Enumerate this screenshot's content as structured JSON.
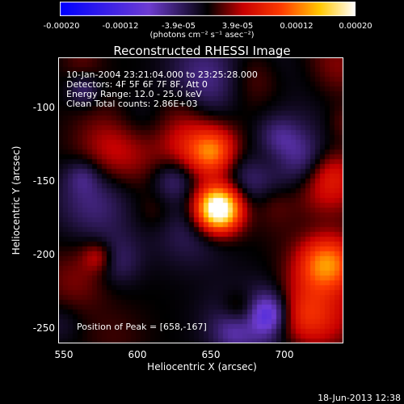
{
  "colorbar": {
    "ticks": [
      "-0.00020",
      "-0.00012",
      "-3.9e-05",
      "3.9e-05",
      "0.00012",
      "0.00020"
    ],
    "label": "(photons cm⁻² s⁻¹ asec⁻²)",
    "range": [
      -0.0002,
      0.0002
    ]
  },
  "chart_data": {
    "type": "heatmap",
    "title": "Reconstructed RHESSI Image",
    "xlabel": "Heliocentric X (arcsec)",
    "ylabel": "Heliocentric Y (arcsec)",
    "xlim": [
      547,
      740
    ],
    "ylim": [
      -262,
      -68
    ],
    "x_ticks": [
      550,
      600,
      650,
      700
    ],
    "y_ticks": [
      -100,
      -150,
      -200,
      -250
    ],
    "peak": [
      658,
      -167
    ],
    "annotations": [
      "10-Jan-2004 23:21:04.000 to 23:25:28.000",
      "Detectors: 4F 5F 6F 7F 8F, Att 0",
      "Energy Range: 12.0 - 25.0 keV",
      "Clean     Total counts: 2.86E+03",
      "Position of Peak = [658,-167]"
    ]
  },
  "footer": {
    "date": "18-Jun-2013 12:38"
  }
}
